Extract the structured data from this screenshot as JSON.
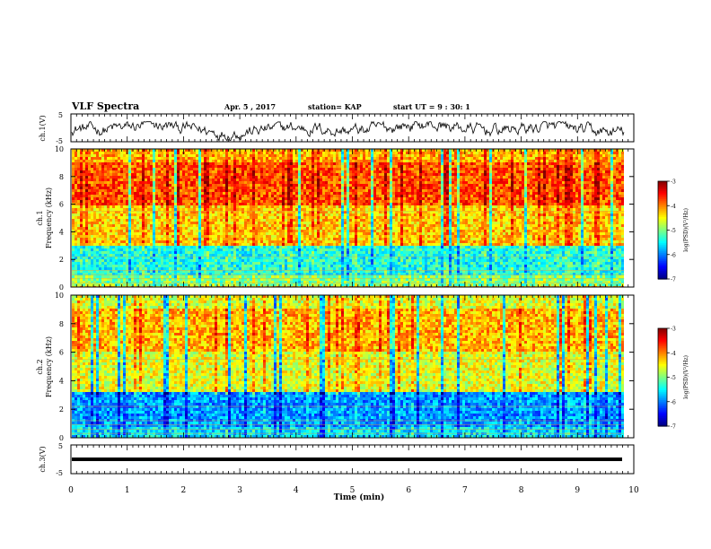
{
  "header": {
    "title": "VLF Spectra",
    "date": "Apr. 5 , 2017",
    "station": "station= KAP",
    "start": "start  UT =   9 : 30: 1"
  },
  "chart_data": [
    {
      "type": "line",
      "name": "ch1-waveform",
      "ylabel": "ch.1(V)",
      "ylim": [
        -5,
        5
      ],
      "yticks": [
        "5",
        "-5"
      ],
      "xlim": [
        0,
        10
      ]
    },
    {
      "type": "heatmap",
      "name": "ch1-spectrogram",
      "ylabel": "ch.1 Frequency (kHz)",
      "ylabel_top": "ch.1",
      "ylabel_bottom": "Frequency (kHz)",
      "ylim": [
        0,
        10
      ],
      "yticks": [
        "0",
        "2",
        "4",
        "6",
        "8",
        "10"
      ],
      "xlim": [
        0,
        10
      ],
      "colorbar": {
        "label": "log(PSD)(V²/Hz)",
        "range": [
          -7,
          -3
        ],
        "ticks": [
          "-3",
          "-4",
          "-5",
          "-6",
          "-7"
        ]
      },
      "bands_kHz": [
        {
          "from": 0,
          "to": 0.8,
          "level": -5.0
        },
        {
          "from": 0.8,
          "to": 3.0,
          "level": -5.4
        },
        {
          "from": 3.0,
          "to": 6.0,
          "level": -4.3
        },
        {
          "from": 6.0,
          "to": 9.0,
          "level": -3.8
        },
        {
          "from": 9.0,
          "to": 10.0,
          "level": -4.2
        }
      ]
    },
    {
      "type": "heatmap",
      "name": "ch2-spectrogram",
      "ylabel": "ch.2 Frequency (kHz)",
      "ylabel_top": "ch.2",
      "ylabel_bottom": "Frequency (kHz)",
      "ylim": [
        0,
        10
      ],
      "yticks": [
        "0",
        "2",
        "4",
        "6",
        "8",
        "10"
      ],
      "xlim": [
        0,
        10
      ],
      "colorbar": {
        "label": "log(PSD)(V²/Hz)",
        "range": [
          -7,
          -3
        ],
        "ticks": [
          "-3",
          "-4",
          "-5",
          "-6",
          "-7"
        ]
      },
      "bands_kHz": [
        {
          "from": 0,
          "to": 0.8,
          "level": -5.6
        },
        {
          "from": 0.8,
          "to": 3.2,
          "level": -5.9
        },
        {
          "from": 3.2,
          "to": 6.0,
          "level": -4.6
        },
        {
          "from": 6.0,
          "to": 9.0,
          "level": -4.2
        },
        {
          "from": 9.0,
          "to": 10.0,
          "level": -4.6
        }
      ]
    },
    {
      "type": "line",
      "name": "ch3-waveform",
      "ylabel": "ch.3(V)",
      "ylim": [
        -5,
        5
      ],
      "yticks": [
        "5",
        "-5"
      ],
      "xlim": [
        0,
        10
      ],
      "constant_value": 0
    }
  ],
  "xaxis": {
    "label": "Time  (min)",
    "ticks": [
      "0",
      "1",
      "2",
      "3",
      "4",
      "5",
      "6",
      "7",
      "8",
      "9",
      "10"
    ],
    "range": [
      0,
      10
    ],
    "data_end": 9.83
  }
}
